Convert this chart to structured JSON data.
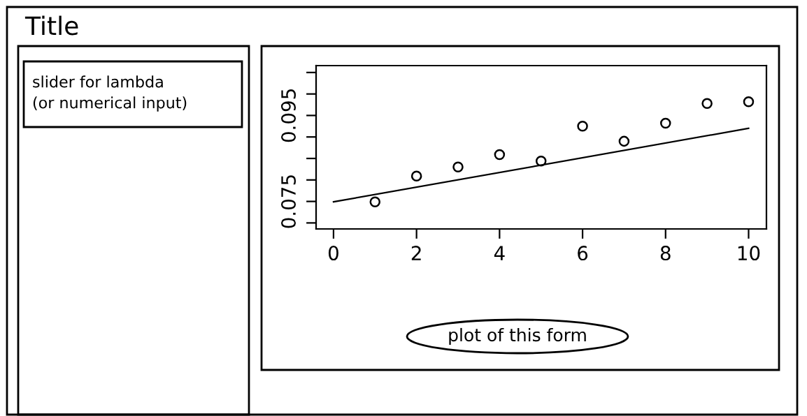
{
  "chart_data": {
    "type": "scatter",
    "title": "Title",
    "annotations": [
      "slider for lambda\n(or numerical input)",
      "plot of this form"
    ],
    "x": [
      1,
      2,
      3,
      4,
      5,
      6,
      7,
      8,
      9,
      10
    ],
    "series": [
      {
        "color": "#000000",
        "marker": "circle",
        "values": [
          0.0749,
          0.0809,
          0.083,
          0.0859,
          0.0844,
          0.0925,
          0.089,
          0.0932,
          0.0978,
          0.0982
        ]
      },
      {
        "type": "line",
        "color": "#000000",
        "x": [
          0,
          10
        ],
        "values": [
          0.0749,
          0.092
        ]
      }
    ],
    "xlim": [
      -0.42,
      10.43
    ],
    "ylim": [
      0.0686,
      0.1066
    ],
    "xticks": [
      0,
      2,
      4,
      6,
      8,
      10
    ],
    "yticks": [
      {
        "value": 0.07,
        "label": null
      },
      {
        "value": 0.075,
        "label": "0.075"
      },
      {
        "value": 0.08,
        "label": null
      },
      {
        "value": 0.085,
        "label": null
      },
      {
        "value": 0.09,
        "label": null
      },
      {
        "value": 0.095,
        "label": "0.095"
      },
      {
        "value": 0.1,
        "label": null
      },
      {
        "value": 0.105,
        "label": null
      }
    ],
    "grid": false,
    "legend": false
  }
}
